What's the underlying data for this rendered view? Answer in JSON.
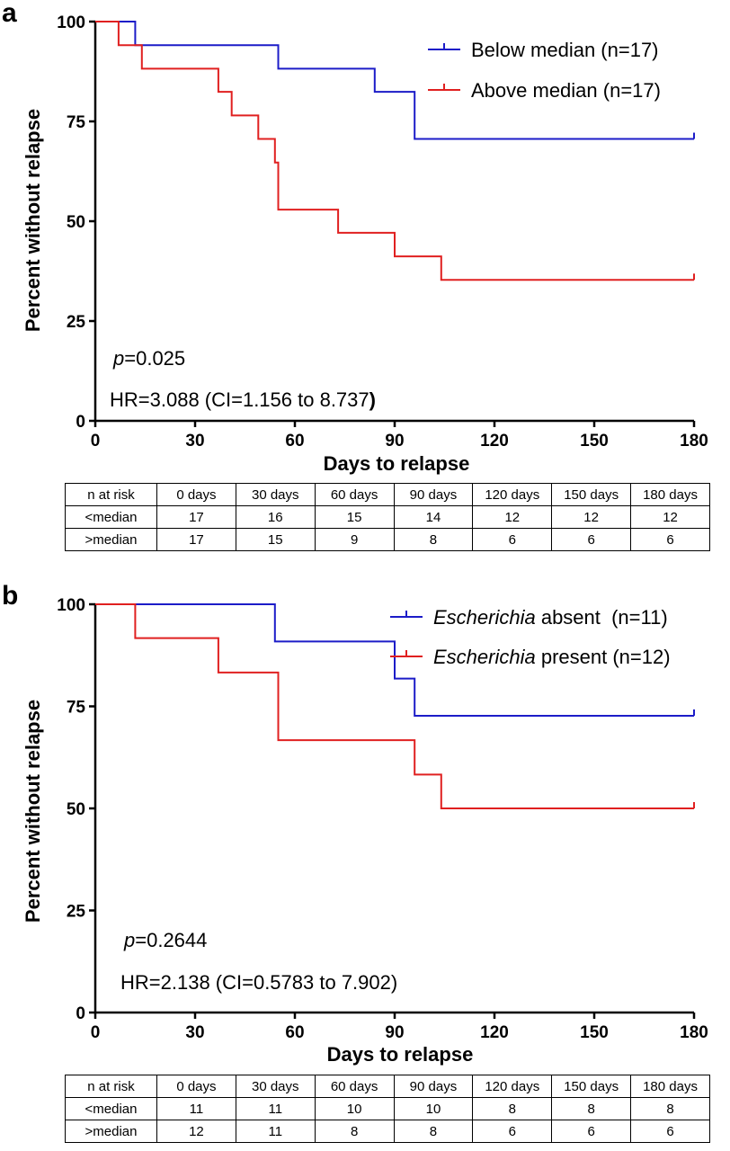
{
  "chart_data": [
    {
      "type": "line",
      "step": true,
      "panel_label": "a",
      "xlabel": "Days to relapse",
      "ylabel": "Percent without relapse",
      "xlim": [
        0,
        180
      ],
      "ylim": [
        0,
        100
      ],
      "xticks": [
        0,
        30,
        60,
        90,
        120,
        150,
        180
      ],
      "yticks": [
        0,
        25,
        50,
        75,
        100
      ],
      "grid": false,
      "legend_position": "top-right",
      "series": [
        {
          "legend": "Below median (n=17)",
          "color": "#1c1cc8",
          "points": [
            [
              0,
              100
            ],
            [
              12,
              94.1
            ],
            [
              55,
              88.2
            ],
            [
              84,
              82.4
            ],
            [
              96,
              70.6
            ],
            [
              180,
              70.6
            ]
          ],
          "censor": [
            180
          ]
        },
        {
          "legend": "Above median (n=17)",
          "color": "#e02020",
          "points": [
            [
              0,
              100
            ],
            [
              7,
              94.1
            ],
            [
              14,
              88.2
            ],
            [
              37,
              82.4
            ],
            [
              41,
              76.5
            ],
            [
              49,
              70.6
            ],
            [
              54,
              64.7
            ],
            [
              55,
              52.9
            ],
            [
              73,
              47.1
            ],
            [
              90,
              41.2
            ],
            [
              104,
              35.3
            ],
            [
              180,
              35.3
            ]
          ],
          "censor": [
            180
          ]
        }
      ],
      "annotations": {
        "p_italic": "p",
        "p_value": "=0.025",
        "hr_text": "HR=3.088 (CI=1.156 to 8.737",
        "hr_close": ")"
      },
      "risk_table": {
        "header": [
          "n at risk",
          "0 days",
          "30 days",
          "60 days",
          "90 days",
          "120 days",
          "150 days",
          "180 days"
        ],
        "rows": [
          [
            "<median",
            "17",
            "16",
            "15",
            "14",
            "12",
            "12",
            "12"
          ],
          [
            ">median",
            "17",
            "15",
            "9",
            "8",
            "6",
            "6",
            "6"
          ]
        ]
      }
    },
    {
      "type": "line",
      "step": true,
      "panel_label": "b",
      "xlabel": "Days to relapse",
      "ylabel": "Percent without relapse",
      "xlim": [
        0,
        180
      ],
      "ylim": [
        0,
        100
      ],
      "xticks": [
        0,
        30,
        60,
        90,
        120,
        150,
        180
      ],
      "yticks": [
        0,
        25,
        50,
        75,
        100
      ],
      "grid": false,
      "legend_position": "top-right",
      "series": [
        {
          "legend_italic": "Escherichia",
          "legend_rest": " absent  (n=11)",
          "color": "#1c1cc8",
          "points": [
            [
              0,
              100
            ],
            [
              54,
              90.9
            ],
            [
              90,
              81.8
            ],
            [
              96,
              72.7
            ],
            [
              180,
              72.7
            ]
          ],
          "censor": [
            180
          ]
        },
        {
          "legend_italic": "Escherichia",
          "legend_rest": " present (n=12)",
          "color": "#e02020",
          "points": [
            [
              0,
              100
            ],
            [
              12,
              91.7
            ],
            [
              37,
              83.3
            ],
            [
              55,
              66.7
            ],
            [
              96,
              58.3
            ],
            [
              104,
              50.0
            ],
            [
              180,
              50.0
            ]
          ],
          "censor": [
            180
          ]
        }
      ],
      "annotations": {
        "p_italic": "p",
        "p_value": "=0.2644",
        "hr_text": "HR=2.138 (CI=0.5783 to 7.902)"
      },
      "risk_table": {
        "header": [
          "n at risk",
          "0 days",
          "30 days",
          "60 days",
          "90 days",
          "120 days",
          "150 days",
          "180 days"
        ],
        "rows": [
          [
            "<median",
            "11",
            "11",
            "10",
            "10",
            "8",
            "8",
            "8"
          ],
          [
            ">median",
            "12",
            "11",
            "8",
            "8",
            "6",
            "6",
            "6"
          ]
        ]
      }
    }
  ]
}
